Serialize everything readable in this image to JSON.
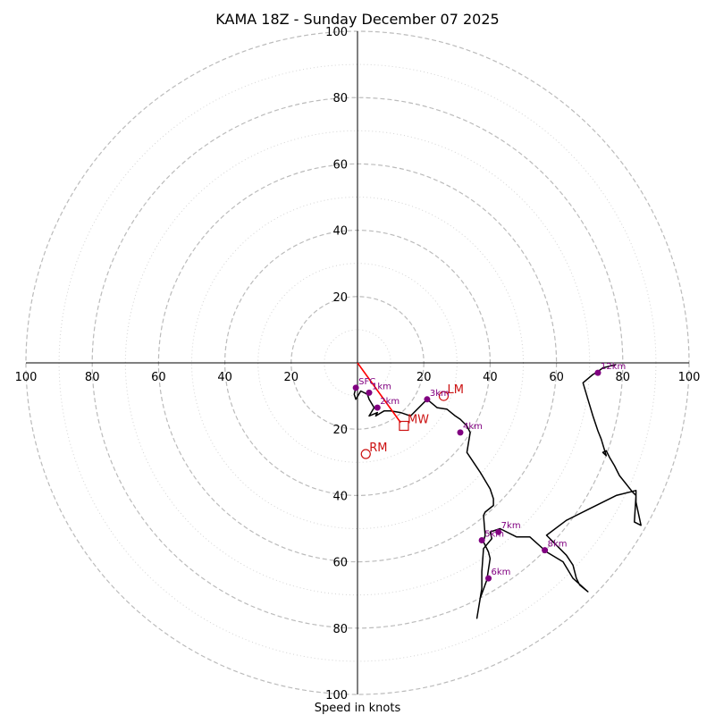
{
  "chart_data": {
    "type": "hodograph",
    "title": "KAMA 18Z - Sunday December 07 2025",
    "xlabel": "Speed in knots",
    "max_speed": 100,
    "ring_major": [
      20,
      40,
      60,
      80,
      100
    ],
    "ring_minor": [
      10,
      30,
      50,
      70,
      90
    ],
    "tick_values": [
      100,
      80,
      60,
      40,
      20
    ],
    "colors": {
      "grid_major": "#bbbbbb",
      "grid_minor": "#d4d4d4",
      "trace": "#000000",
      "height_marker": "#800080",
      "motion": "#cc1111",
      "shear": "#ff0000"
    },
    "trace": [
      [
        -0.5,
        -7.5
      ],
      [
        -1,
        -9.5
      ],
      [
        -0.5,
        -11
      ],
      [
        1,
        -8.5
      ],
      [
        3,
        -9.5
      ],
      [
        3.5,
        -11
      ],
      [
        5,
        -13.5
      ],
      [
        3.5,
        -16
      ],
      [
        6,
        -15
      ],
      [
        5.5,
        -16
      ],
      [
        8,
        -14.5
      ],
      [
        10,
        -14.5
      ],
      [
        13,
        -15
      ],
      [
        16,
        -16
      ],
      [
        21,
        -11
      ],
      [
        24,
        -13.5
      ],
      [
        27,
        -14
      ],
      [
        29.5,
        -16
      ],
      [
        31,
        -17
      ],
      [
        33,
        -19
      ],
      [
        34,
        -21
      ],
      [
        33,
        -27
      ],
      [
        37,
        -33
      ],
      [
        40,
        -38
      ],
      [
        41,
        -41
      ],
      [
        41,
        -43
      ],
      [
        38.5,
        -45
      ],
      [
        38,
        -46
      ],
      [
        38.5,
        -52
      ],
      [
        38,
        -54
      ],
      [
        39.5,
        -57
      ],
      [
        40,
        -59
      ],
      [
        39,
        -65.5
      ],
      [
        37,
        -71
      ],
      [
        36,
        -77
      ],
      [
        37.5,
        -68
      ],
      [
        37.5,
        -63
      ],
      [
        38,
        -56
      ],
      [
        40.5,
        -53
      ],
      [
        40,
        -51
      ],
      [
        43,
        -50
      ],
      [
        48,
        -52.5
      ],
      [
        52,
        -52.5
      ],
      [
        57,
        -57
      ],
      [
        62,
        -60
      ],
      [
        65,
        -65
      ],
      [
        69.5,
        -69
      ],
      [
        67,
        -67
      ],
      [
        66,
        -65
      ],
      [
        65,
        -61
      ],
      [
        63,
        -58
      ],
      [
        57,
        -52
      ],
      [
        63,
        -47.5
      ],
      [
        70,
        -44
      ],
      [
        78,
        -40
      ],
      [
        84,
        -38.5
      ],
      [
        84,
        -42
      ],
      [
        85.5,
        -49
      ],
      [
        83.5,
        -48
      ],
      [
        84,
        -40
      ],
      [
        83,
        -39
      ],
      [
        79,
        -34
      ],
      [
        77.5,
        -31
      ],
      [
        76,
        -28.5
      ],
      [
        75,
        -26.5
      ],
      [
        74,
        -27
      ],
      [
        75,
        -28
      ],
      [
        73.5,
        -23
      ],
      [
        72.5,
        -20.5
      ],
      [
        71,
        -16
      ],
      [
        69.5,
        -11
      ],
      [
        68,
        -6
      ],
      [
        71,
        -3.5
      ],
      [
        72,
        -3
      ],
      [
        74,
        -1.5
      ],
      [
        76,
        -1
      ],
      [
        78,
        -0.5
      ]
    ],
    "heights": [
      {
        "label": "SFC",
        "u": -0.5,
        "v": -7.5
      },
      {
        "label": "1km",
        "u": 3.5,
        "v": -9
      },
      {
        "label": "2km",
        "u": 6,
        "v": -13.5
      },
      {
        "label": "3km",
        "u": 21,
        "v": -11
      },
      {
        "label": "4km",
        "u": 31,
        "v": -21
      },
      {
        "label": "5km",
        "u": 37.5,
        "v": -53.5
      },
      {
        "label": "6km",
        "u": 39.5,
        "v": -65
      },
      {
        "label": "7km",
        "u": 42.5,
        "v": -51
      },
      {
        "label": "8km",
        "u": 56.5,
        "v": -56.5
      },
      {
        "label": "12km",
        "u": 72.5,
        "v": -3
      }
    ],
    "storm_motion": [
      {
        "label": "LM",
        "u": 26,
        "v": -10,
        "marker": "circle"
      },
      {
        "label": "MW",
        "u": 14,
        "v": -19,
        "marker": "square"
      },
      {
        "label": "RM",
        "u": 2.5,
        "v": -27.5,
        "marker": "circle"
      }
    ],
    "shear_vector": {
      "u": 13,
      "v": -18
    }
  }
}
